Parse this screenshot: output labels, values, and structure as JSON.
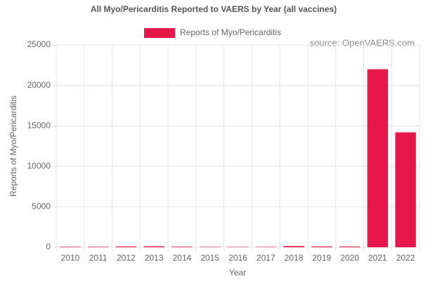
{
  "chart_data": {
    "type": "bar",
    "title": "All Myo/Pericarditis Reported to VAERS by Year (all vaccines)",
    "annotation": "source: OpenVAERS.com",
    "x_label": "Year",
    "y_label": "Reports of Myo/Pericarditis",
    "categories": [
      "2010",
      "2011",
      "2012",
      "2013",
      "2014",
      "2015",
      "2016",
      "2017",
      "2018",
      "2019",
      "2020",
      "2021",
      "2022"
    ],
    "series": [
      {
        "name": "Reports of Myo/Pericarditis",
        "color": "#e8174a",
        "values": [
          60,
          60,
          100,
          120,
          70,
          50,
          50,
          50,
          150,
          100,
          90,
          22000,
          14200
        ]
      }
    ],
    "ylim": [
      0,
      25000
    ],
    "yticks": [
      0,
      5000,
      10000,
      15000,
      20000,
      25000
    ],
    "grid": true,
    "legend": "top"
  }
}
